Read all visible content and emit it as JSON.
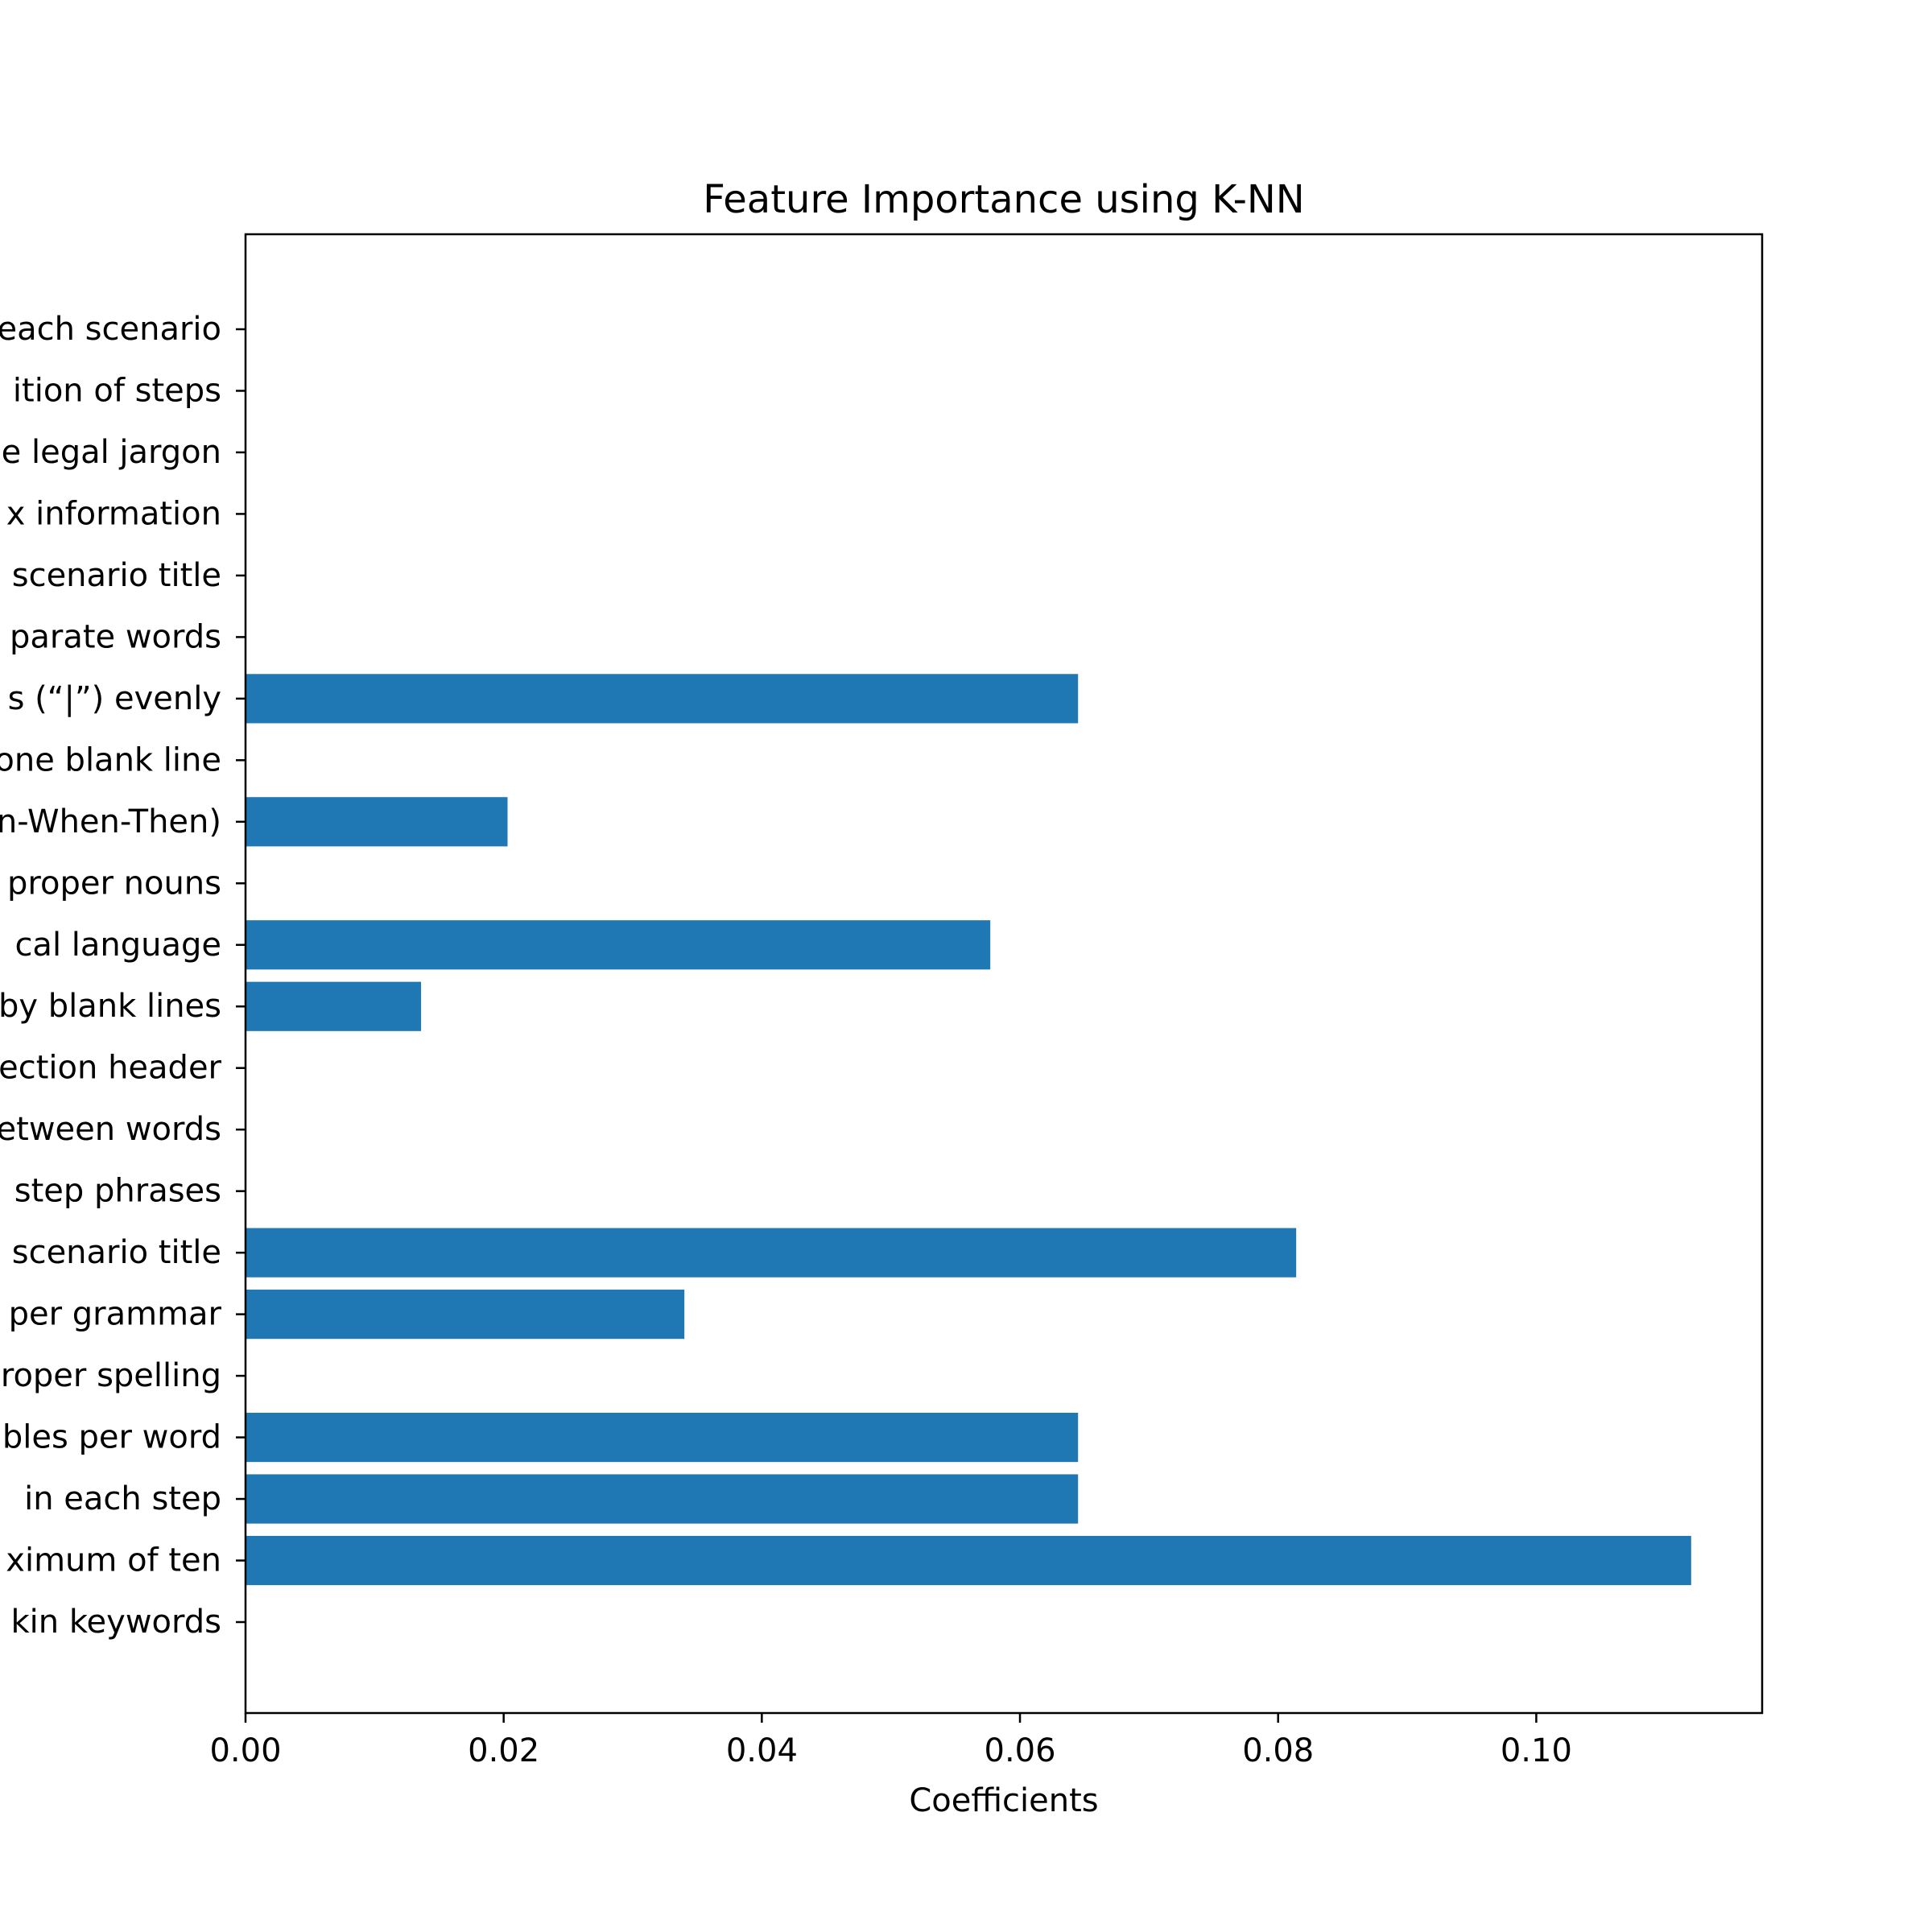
{
  "chart_data": {
    "type": "bar",
    "orientation": "horizontal",
    "title": "Feature Importance using K-NN",
    "xlabel": "Coefficients",
    "ylabel": "",
    "xlim": [
      0,
      0.1175
    ],
    "xticks": [
      0.0,
      0.02,
      0.04,
      0.06,
      0.08,
      0.1
    ],
    "xtick_labels": [
      "0.00",
      "0.02",
      "0.04",
      "0.06",
      "0.08",
      "0.10"
    ],
    "bar_color": "#1f77b4",
    "grid": false,
    "categories": [
      "kin keywords",
      "ximum of ten",
      "in each step",
      "bles per word",
      "roper spelling",
      "per grammar",
      "scenario title",
      "step phrases",
      "etween words",
      "ection header",
      "by blank lines",
      "cal language",
      "proper nouns",
      "n-When-Then)",
      "one blank line",
      "s (“|”) evenly",
      "parate words",
      "scenario title",
      "x information",
      "e legal jargon",
      "ition of steps",
      "each scenario"
    ],
    "values": [
      0.0,
      0.112,
      0.0645,
      0.0645,
      0.0,
      0.034,
      0.0814,
      0.0,
      0.0,
      0.0,
      0.0136,
      0.0577,
      0.0,
      0.0203,
      0.0,
      0.0645,
      0.0,
      0.0,
      0.0,
      0.0,
      0.0,
      0.0
    ]
  }
}
